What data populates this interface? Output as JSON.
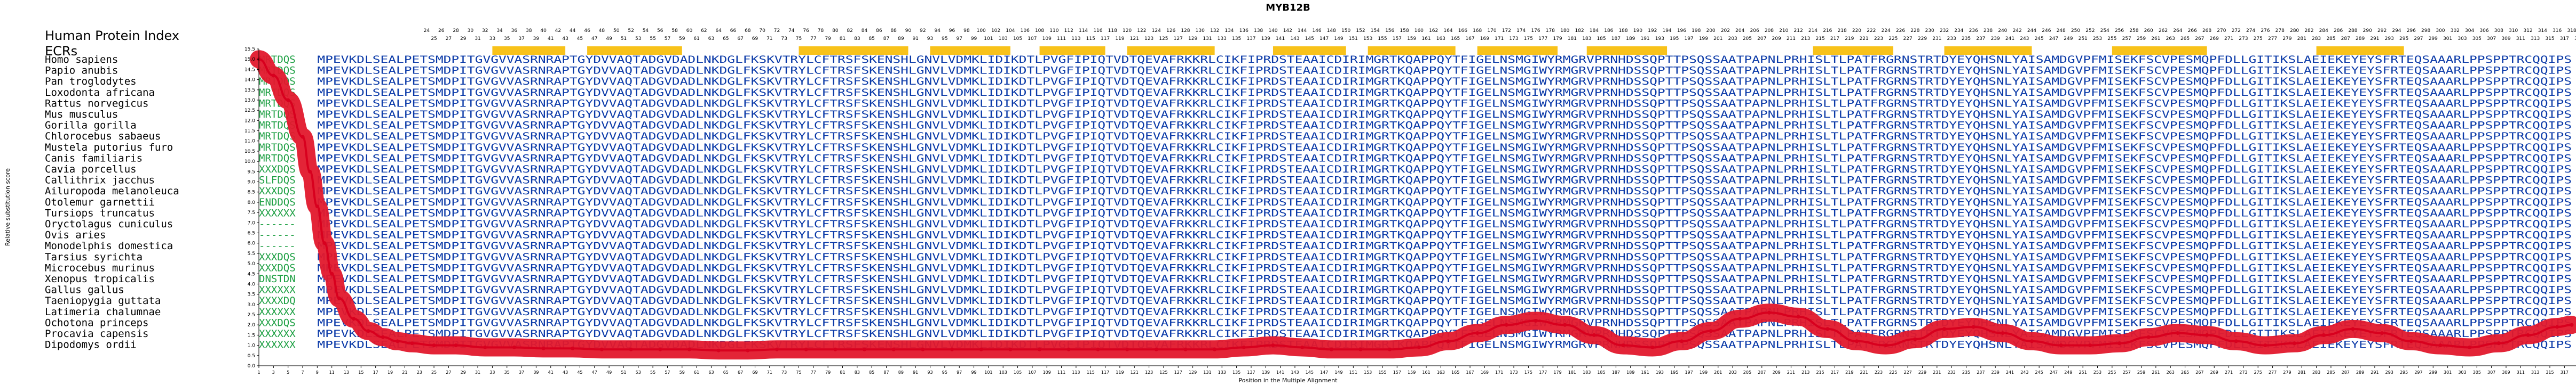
{
  "chart_data": {
    "type": "line",
    "title": "MYB12B",
    "xlabel": "Position in the Multiple Alignment",
    "ylabel": "Relative substitution score",
    "ylim": [
      0,
      15.5
    ],
    "yticks": [
      "0.0",
      "0.5",
      "1.0",
      "1.5",
      "2.0",
      "2.5",
      "3.0",
      "3.5",
      "4.0",
      "4.5",
      "5.0",
      "5.5",
      "6.0",
      "6.5",
      "7.0",
      "7.5",
      "8.0",
      "8.5",
      "9.0",
      "9.5",
      "10.0",
      "10.5",
      "11.0",
      "11.5",
      "12.0",
      "12.5",
      "13.0",
      "13.5",
      "14.0",
      "14.5",
      "15.0",
      "15.5"
    ],
    "x_range": [
      1,
      318
    ],
    "header_row1": [
      "24",
      "26",
      "28",
      "30",
      "32",
      "34",
      "36",
      "38",
      "40",
      "42",
      "44",
      "46",
      "48",
      "50",
      "52",
      "54",
      "56",
      "58",
      "60",
      "62",
      "64",
      "66",
      "68",
      "70",
      "72",
      "74",
      "76",
      "78",
      "80",
      "82",
      "84",
      "86",
      "88",
      "90",
      "92",
      "94",
      "96",
      "98",
      "100",
      "102",
      "104",
      "106",
      "108",
      "110",
      "112",
      "114",
      "116",
      "118",
      "120",
      "122",
      "124",
      "126",
      "128",
      "130",
      "132",
      "134",
      "136",
      "138",
      "140",
      "142",
      "144",
      "146",
      "148",
      "150",
      "152",
      "154",
      "156",
      "158",
      "160",
      "162",
      "164",
      "166",
      "168",
      "170",
      "172",
      "174",
      "176",
      "178",
      "180",
      "182",
      "184",
      "186",
      "188",
      "190",
      "192",
      "194",
      "196",
      "198",
      "200",
      "202",
      "204",
      "206",
      "208",
      "210",
      "212",
      "214",
      "216",
      "218",
      "220",
      "222",
      "224",
      "226",
      "228",
      "230",
      "232",
      "234",
      "236",
      "238",
      "240",
      "242",
      "244",
      "246",
      "248",
      "250",
      "252",
      "254",
      "256",
      "258",
      "260",
      "262",
      "264",
      "266",
      "268",
      "270",
      "272",
      "274",
      "276",
      "278",
      "280",
      "282",
      "284",
      "286",
      "288",
      "290",
      "292",
      "294",
      "296",
      "298",
      "300",
      "302",
      "304",
      "306",
      "308",
      "310",
      "312",
      "314",
      "316",
      "318"
    ],
    "header_row2": [
      "25",
      "27",
      "29",
      "31",
      "33",
      "35",
      "37",
      "39",
      "41",
      "43",
      "45",
      "47",
      "49",
      "51",
      "53",
      "55",
      "57",
      "59",
      "61",
      "63",
      "65",
      "67",
      "69",
      "71",
      "73",
      "75",
      "77",
      "79",
      "81",
      "83",
      "85",
      "87",
      "89",
      "91",
      "93",
      "95",
      "97",
      "99",
      "101",
      "103",
      "105",
      "107",
      "109",
      "111",
      "113",
      "115",
      "117",
      "119",
      "121",
      "123",
      "125",
      "127",
      "129",
      "131",
      "133",
      "135",
      "137",
      "139",
      "141",
      "143",
      "145",
      "147",
      "149",
      "151",
      "153",
      "155",
      "157",
      "159",
      "161",
      "163",
      "165",
      "167",
      "169",
      "171",
      "173",
      "175",
      "177",
      "179",
      "181",
      "183",
      "185",
      "187",
      "189",
      "191",
      "193",
      "195",
      "197",
      "199",
      "201",
      "203",
      "205",
      "207",
      "209",
      "211",
      "213",
      "215",
      "217",
      "219",
      "221",
      "223",
      "225",
      "227",
      "229",
      "231",
      "233",
      "235",
      "237",
      "239",
      "241",
      "243",
      "245",
      "247",
      "249",
      "251",
      "253",
      "255",
      "257",
      "259",
      "261",
      "263",
      "265",
      "267",
      "269",
      "271",
      "273",
      "275",
      "277",
      "279",
      "281",
      "283",
      "285",
      "287",
      "289",
      "291",
      "293",
      "295",
      "297",
      "299",
      "301",
      "303",
      "305",
      "307",
      "309",
      "311",
      "313",
      "315",
      "317",
      "319"
    ],
    "index_label": "Human Protein Index",
    "ecr_label": "ECRs",
    "ecr_segments": [
      [
        33,
        43
      ],
      [
        46,
        59
      ],
      [
        75,
        90
      ],
      [
        93,
        104
      ],
      [
        108,
        117
      ],
      [
        120,
        132
      ],
      [
        140,
        150
      ],
      [
        153,
        165
      ],
      [
        168,
        179
      ],
      [
        183,
        194
      ],
      [
        214,
        225
      ],
      [
        232,
        244
      ],
      [
        255,
        268
      ],
      [
        283,
        295
      ]
    ],
    "species": [
      "Homo sapiens",
      "Papio anubis",
      "Pan troglodytes",
      "Loxodonta africana",
      "Rattus norvegicus",
      "Mus musculus",
      "Gorilla gorilla",
      "Chlorocebus sabaeus",
      "Mustela putorius furo",
      "Canis familiaris",
      "Cavia porcellus",
      "Callithrix jacchus",
      "Ailuropoda melanoleuca",
      "Otolemur garnettii",
      "Tursiops truncatus",
      "Oryctolagus cuniculus",
      "Ovis aries",
      "Monodelphis domestica",
      "Tarsius syrichta",
      "Microcebus murinus",
      "Xenopus tropicalis",
      "Gallus gallus",
      "Taeniopygia guttata",
      "Latimeria chalumnae",
      "Ochotona princeps",
      "Procavia capensis",
      "Dipodomys ordii"
    ],
    "sequence_core": "MPEVKDLSEALPETSMDPITGVGVVASRNRAPTGYDVVAQTADGVDADLNKDGLFKSKVTRYLCFTRSFSKENSHLGNVLVDMKLIDIKDTLPVGFIPIQTVDTQEVAFRKKRLCIKFIPRDSTEAAICDIRIMGRTKQAPPQYTFIGELNSMGIWYRMGRVPRNHDSSQPTTPSQSSAATPAPNLPRHISLTLPATFRGRNSTRTDYEYQHSNLYAISAMDGVPFMISEKFSCVPESMQPFDLLGITIKSLAEIEKEYEYSFRTEQSAAARLPPSPPTRCQQIPS",
    "left_prefixes": [
      "MRTDQS",
      "MRTDQS",
      "MRTDQS",
      "MRTDQS",
      "MRTDQS",
      "MRTDQS",
      "MRTDQS",
      "MRTDQS",
      "MRTDQS",
      "MRTDQS",
      "XXXDQS",
      "SLFDQS",
      "XXXDQS",
      "ENDDQS",
      "XXXXXX",
      "------",
      "------",
      "------",
      "XXXDQS",
      "XXXDQS",
      "DNSTDN",
      "XXXXXX",
      "XXXXDQ",
      "XXXXXX",
      "XXXDQS",
      "XXXXXX",
      "XXXXXX"
    ],
    "score_x": [
      1,
      3,
      5,
      7,
      8,
      9,
      10,
      11,
      12,
      14,
      16,
      18,
      20,
      22,
      25,
      28,
      32,
      36,
      40,
      44,
      48,
      52,
      56,
      60,
      64,
      68,
      72,
      76,
      80,
      84,
      88,
      92,
      96,
      100,
      104,
      108,
      112,
      116,
      120,
      124,
      128,
      132,
      136,
      140,
      144,
      148,
      152,
      156,
      160,
      164,
      168,
      172,
      176,
      180,
      184,
      188,
      192,
      196,
      200,
      204,
      208,
      212,
      216,
      220,
      224,
      228,
      232,
      236,
      240,
      244,
      248,
      252,
      256,
      260,
      264,
      268,
      272,
      276,
      280,
      284,
      288,
      292,
      296,
      300,
      304,
      308,
      312,
      316,
      318
    ],
    "score_y": [
      15.0,
      14.2,
      13.0,
      11.2,
      9.5,
      7.8,
      6.0,
      4.5,
      3.3,
      2.3,
      1.7,
      1.4,
      1.2,
      1.1,
      1.0,
      1.0,
      0.9,
      0.9,
      0.85,
      0.85,
      0.8,
      0.8,
      0.8,
      0.8,
      0.75,
      0.75,
      0.8,
      0.8,
      0.8,
      0.8,
      0.8,
      0.8,
      0.8,
      0.8,
      0.8,
      0.8,
      0.8,
      0.8,
      0.8,
      0.8,
      0.8,
      0.8,
      0.9,
      1.0,
      0.9,
      0.8,
      0.8,
      0.8,
      0.9,
      1.2,
      1.6,
      2.0,
      2.2,
      2.0,
      1.5,
      1.0,
      0.9,
      1.2,
      1.7,
      2.3,
      2.6,
      2.4,
      1.8,
      1.2,
      1.0,
      1.3,
      1.8,
      1.9,
      1.6,
      1.2,
      1.0,
      1.0,
      1.1,
      1.4,
      1.6,
      1.5,
      1.2,
      1.0,
      1.1,
      1.5,
      1.8,
      1.6,
      1.2,
      1.0,
      0.9,
      1.1,
      1.5,
      1.9,
      2.0
    ],
    "colors": {
      "score_line": "#d8001e",
      "score_fill": "#e2182c",
      "blue_residue": "#0b3aa8",
      "green_residue": "#1ea044",
      "ecr": "#f8c21a"
    }
  }
}
